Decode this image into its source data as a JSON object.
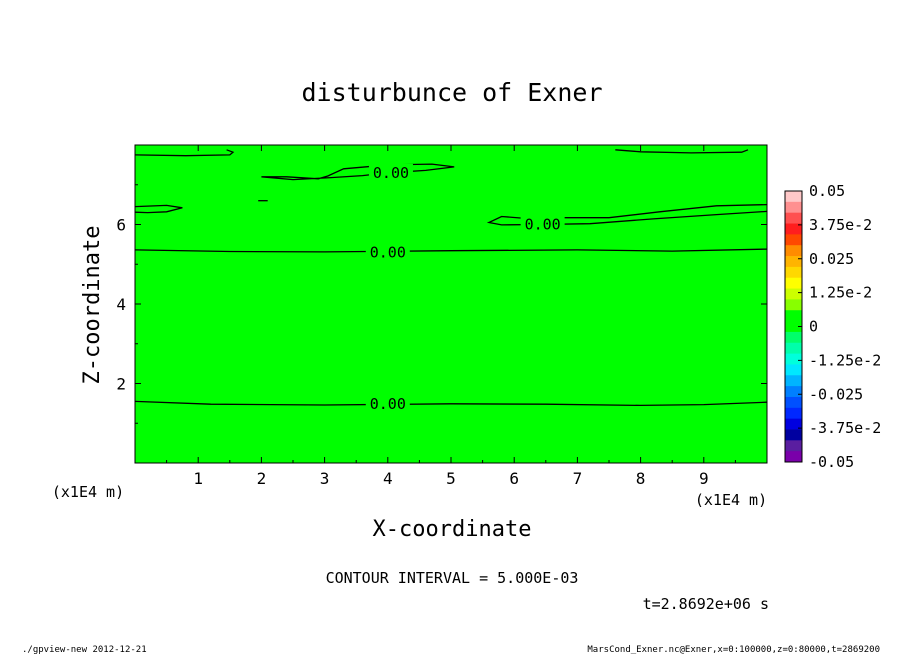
{
  "chart_data": {
    "type": "heatmap",
    "title": "disturbunce of Exner",
    "xlabel": "X-coordinate",
    "ylabel": "Z-coordinate",
    "x_unit": "(x1E4 m)",
    "y_unit": "(x1E4 m)",
    "xlim": [
      0,
      10
    ],
    "ylim": [
      0,
      8
    ],
    "x_ticks": [
      1,
      2,
      3,
      4,
      5,
      6,
      7,
      8,
      9
    ],
    "y_ticks": [
      2,
      4,
      6
    ],
    "fill_color": "#00ff00",
    "contour_interval_text": "CONTOUR INTERVAL = 5.000E-03",
    "time_text": "t=2.8692e+06 s",
    "contours": [
      {
        "label": "0.00",
        "label_at": [
          4.0,
          5.3
        ],
        "points": [
          [
            0,
            5.36
          ],
          [
            1.5,
            5.32
          ],
          [
            3.0,
            5.31
          ],
          [
            5.0,
            5.34
          ],
          [
            7.0,
            5.36
          ],
          [
            8.5,
            5.33
          ],
          [
            10,
            5.38
          ]
        ]
      },
      {
        "label": "0.00",
        "label_at": [
          4.0,
          1.48
        ],
        "points": [
          [
            0,
            1.55
          ],
          [
            1.2,
            1.48
          ],
          [
            3.0,
            1.46
          ],
          [
            5.0,
            1.49
          ],
          [
            6.5,
            1.48
          ],
          [
            8.0,
            1.45
          ],
          [
            9.0,
            1.47
          ],
          [
            10,
            1.53
          ]
        ]
      },
      {
        "label": "0.00",
        "label_at": [
          4.05,
          7.3
        ],
        "points": [
          [
            2.0,
            7.2
          ],
          [
            2.4,
            7.2
          ],
          [
            2.9,
            7.15
          ],
          [
            3.05,
            7.22
          ],
          [
            3.3,
            7.4
          ],
          [
            4.0,
            7.5
          ],
          [
            4.7,
            7.52
          ],
          [
            5.05,
            7.45
          ],
          [
            4.6,
            7.36
          ],
          [
            4.0,
            7.3
          ],
          [
            3.6,
            7.23
          ],
          [
            3.1,
            7.18
          ],
          [
            2.5,
            7.13
          ],
          [
            2.0,
            7.2
          ]
        ]
      },
      {
        "label": "0.00",
        "label_at": [
          6.45,
          6.0
        ],
        "points": [
          [
            10,
            6.5
          ],
          [
            9.2,
            6.47
          ],
          [
            8.3,
            6.32
          ],
          [
            7.5,
            6.17
          ],
          [
            6.8,
            6.17
          ],
          [
            6.2,
            6.15
          ],
          [
            5.8,
            6.2
          ],
          [
            5.6,
            6.05
          ],
          [
            5.8,
            5.99
          ],
          [
            6.4,
            6.0
          ],
          [
            7.2,
            6.02
          ],
          [
            8.2,
            6.14
          ],
          [
            9.2,
            6.25
          ],
          [
            10,
            6.33
          ]
        ]
      },
      {
        "label": "",
        "label_at": null,
        "points": [
          [
            0,
            6.45
          ],
          [
            0.5,
            6.48
          ],
          [
            0.75,
            6.42
          ],
          [
            0.5,
            6.32
          ],
          [
            0.2,
            6.3
          ],
          [
            0,
            6.31
          ]
        ]
      },
      {
        "label": "",
        "label_at": null,
        "points": [
          [
            0,
            7.75
          ],
          [
            0.8,
            7.73
          ],
          [
            1.5,
            7.75
          ],
          [
            1.55,
            7.82
          ],
          [
            1.45,
            7.88
          ]
        ]
      },
      {
        "label": "",
        "label_at": null,
        "points": [
          [
            7.6,
            7.88
          ],
          [
            8.0,
            7.83
          ],
          [
            8.8,
            7.8
          ],
          [
            9.6,
            7.82
          ],
          [
            9.7,
            7.88
          ]
        ]
      },
      {
        "label": "",
        "label_at": null,
        "points": [
          [
            1.95,
            6.6
          ],
          [
            2.1,
            6.6
          ]
        ]
      }
    ],
    "colorbar": {
      "labels": [
        "0.05",
        "3.75e-2",
        "0.025",
        "1.25e-2",
        "0",
        "-1.25e-2",
        "-0.025",
        "-3.75e-2",
        "-0.05"
      ],
      "colors": [
        "#ffc8c8",
        "#ff9090",
        "#ff5050",
        "#ff1e1e",
        "#ff4800",
        "#ff8c00",
        "#ffb400",
        "#ffd800",
        "#ffff00",
        "#ccff00",
        "#88ff00",
        "#00ff00",
        "#00ff00",
        "#00ff6a",
        "#00ffaa",
        "#00ffdc",
        "#00e8ff",
        "#00b4ff",
        "#0080ff",
        "#0050ff",
        "#0028ff",
        "#0000e0",
        "#0000a0",
        "#5a1ea0",
        "#7a00aa"
      ]
    }
  },
  "footer": {
    "left": "./gpview-new  2012-12-21",
    "right": "MarsCond_Exner.nc@Exner,x=0:100000,z=0:80000,t=2869200"
  }
}
